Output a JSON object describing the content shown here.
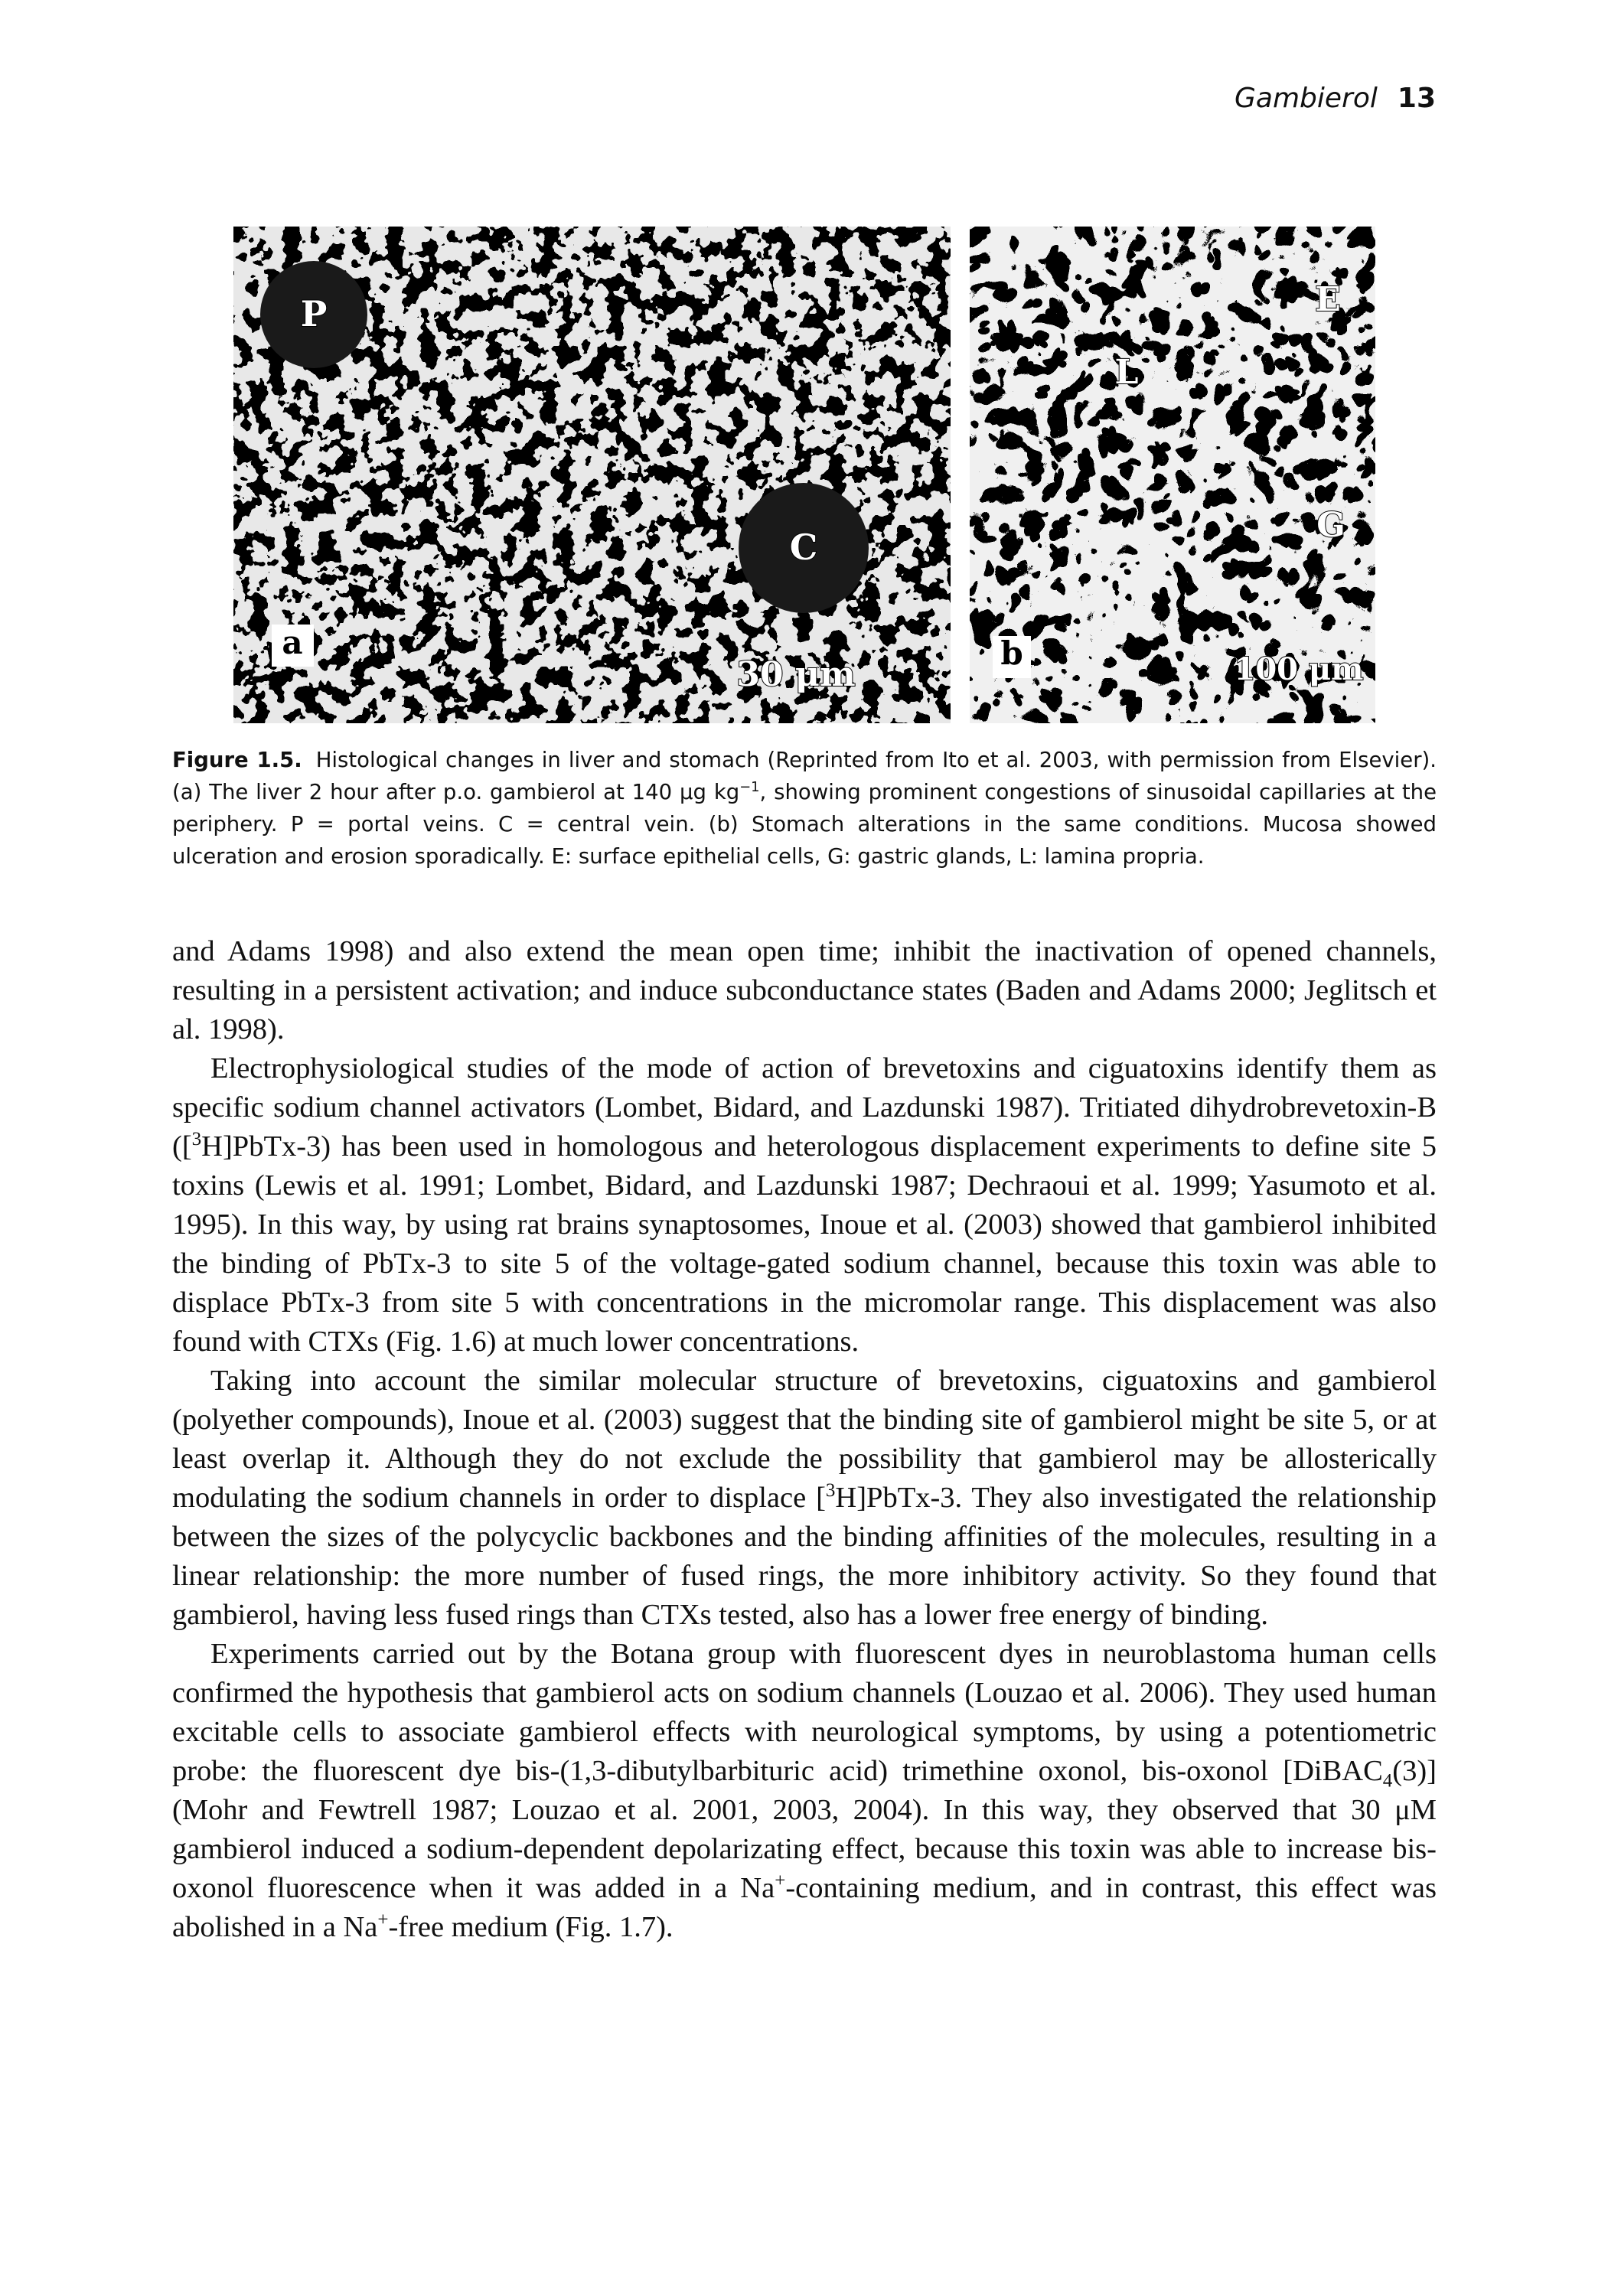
{
  "header": {
    "title": "Gambierol",
    "page": "13"
  },
  "figure": {
    "panels": [
      {
        "labels": [
          "P",
          "C",
          "a",
          "30 μm"
        ]
      },
      {
        "labels": [
          "b",
          "E",
          "L",
          "G",
          "100 μm"
        ]
      }
    ],
    "caption": {
      "label": "Figure 1.5.",
      "runs": [
        "Histological changes in liver and stomach (Reprinted from Ito et al. 2003, with permission from Elsevier). (a) The liver 2 hour after p.o. gambierol at 140 μg kg",
        {
          "sup": "−1"
        },
        ", showing prominent congestions of sinusoidal capillaries at the periphery. P = portal veins. C = central vein. (b) Stomach alterations in the same conditions. Mucosa showed ulceration and erosion sporadically. E: surface epithelial cells, G: gastric glands, L: lamina propria."
      ]
    }
  },
  "body": {
    "paragraphs": [
      [
        "and Adams 1998) and also extend the mean open time; inhibit the inactivation of opened channels, resulting in a persistent activation; and induce subconductance states (Baden and Adams 2000; Jeglitsch et al. 1998)."
      ],
      [
        "Electrophysiological studies of the mode of action of brevetoxins and ciguatoxins identify them as specific sodium channel activators (Lombet, Bidard, and Lazdunski 1987). Tritiated dihydrobrevetoxin-B ([",
        {
          "sup": "3"
        },
        "H]PbTx-3) has been used in homologous and heterologous displacement experiments to define site 5 toxins (Lewis et al. 1991; Lombet, Bidard, and Lazdunski 1987; Dechraoui et al. 1999; Yasumoto et al. 1995). In this way, by using rat brains synaptosomes, Inoue et al. (2003) showed that gambierol inhibited the binding of PbTx-3 to site 5 of the voltage-gated sodium channel, because this toxin was able to displace PbTx-3 from site 5 with concentrations in the micromolar range. This displacement was also found with CTXs (Fig. 1.6) at much lower concentrations."
      ],
      [
        "Taking into account the similar molecular structure of brevetoxins, ciguatoxins and gambierol (polyether compounds), Inoue et al. (2003) suggest that the binding site of gambierol might be site 5, or at least overlap it. Although they do not exclude the possibility that gambierol may be allosterically modulating the sodium channels in order to displace [",
        {
          "sup": "3"
        },
        "H]PbTx-3. They also investigated the relationship between the sizes of the polycyclic backbones and the binding affinities of the molecules, resulting in a linear relationship: the more number of fused rings, the more inhibitory activity. So they found that gambierol, having less fused rings than CTXs tested, also has a lower free energy of binding."
      ],
      [
        "Experiments carried out by the Botana group with fluorescent dyes in neuroblastoma human cells confirmed the hypothesis that gambierol acts on sodium channels (Louzao et al. 2006). They used human excitable cells to associate gambierol effects with neurological symptoms, by using a potentiometric probe: the fluorescent dye bis-(1,3-dibutylbarbituric acid) trimethine oxonol, bis-oxonol [DiBAC",
        {
          "sub": "4"
        },
        "(3)] (Mohr and Fewtrell 1987; Louzao et al. 2001, 2003, 2004). In this way, they observed that 30 μM gambierol induced a sodium-dependent depolarizating effect, because this toxin was able to increase bis-oxonol fluorescence when it was added in a Na",
        {
          "sup": "+"
        },
        "-containing medium, and in contrast, this effect was abolished in a Na",
        {
          "sup": "+"
        },
        "-free medium (Fig. 1.7)."
      ]
    ]
  }
}
